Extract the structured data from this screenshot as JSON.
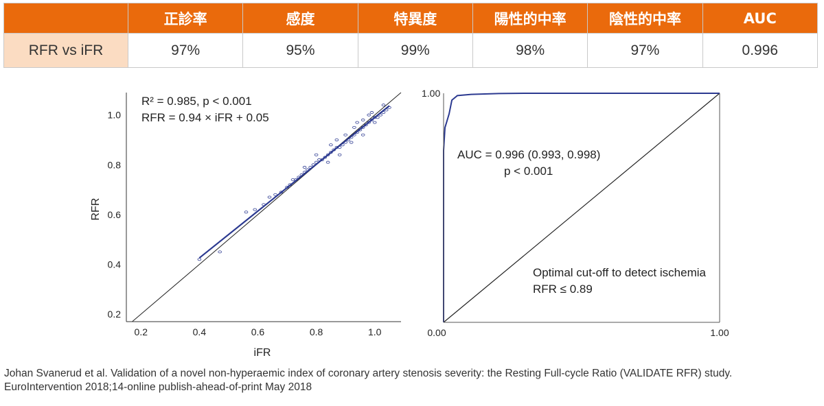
{
  "table": {
    "headers": [
      "",
      "正診率",
      "感度",
      "特異度",
      "陽性的中率",
      "陰性的中率",
      "AUC"
    ],
    "rows": [
      {
        "label": "RFR vs iFR",
        "values": [
          "97%",
          "95%",
          "99%",
          "98%",
          "97%",
          "0.996"
        ]
      }
    ]
  },
  "chart_data": [
    {
      "type": "scatter",
      "xlabel": "iFR",
      "ylabel": "RFR",
      "xlim": [
        0.15,
        1.09
      ],
      "ylim": [
        0.17,
        1.09
      ],
      "xticks": [
        0.2,
        0.4,
        0.6,
        0.8,
        1.0
      ],
      "xtick_labels": [
        "0.2",
        "0.4",
        "0.6",
        "0.8",
        "1.0"
      ],
      "yticks": [
        0.2,
        0.4,
        0.6,
        0.8,
        1.0
      ],
      "ytick_labels": [
        "0.2",
        "0.4",
        "0.6",
        "0.8",
        "1.0"
      ],
      "annotations": [
        "R² = 0.985, p < 0.001",
        "RFR = 0.94 × iFR + 0.05"
      ],
      "regression_line": {
        "x": [
          0.4,
          1.05
        ],
        "y": [
          0.426,
          1.037
        ],
        "color": "#2b3990"
      },
      "identity_line": true,
      "point_color": "#2b3990",
      "points": [
        [
          0.4,
          0.42
        ],
        [
          0.47,
          0.45
        ],
        [
          0.56,
          0.61
        ],
        [
          0.59,
          0.62
        ],
        [
          0.62,
          0.64
        ],
        [
          0.64,
          0.67
        ],
        [
          0.66,
          0.68
        ],
        [
          0.68,
          0.69
        ],
        [
          0.7,
          0.71
        ],
        [
          0.71,
          0.72
        ],
        [
          0.72,
          0.74
        ],
        [
          0.73,
          0.74
        ],
        [
          0.74,
          0.75
        ],
        [
          0.75,
          0.76
        ],
        [
          0.76,
          0.77
        ],
        [
          0.77,
          0.78
        ],
        [
          0.78,
          0.79
        ],
        [
          0.79,
          0.8
        ],
        [
          0.8,
          0.81
        ],
        [
          0.81,
          0.82
        ],
        [
          0.82,
          0.82
        ],
        [
          0.83,
          0.83
        ],
        [
          0.84,
          0.84
        ],
        [
          0.85,
          0.85
        ],
        [
          0.86,
          0.86
        ],
        [
          0.87,
          0.87
        ],
        [
          0.88,
          0.87
        ],
        [
          0.89,
          0.88
        ],
        [
          0.9,
          0.89
        ],
        [
          0.91,
          0.9
        ],
        [
          0.92,
          0.91
        ],
        [
          0.93,
          0.92
        ],
        [
          0.94,
          0.93
        ],
        [
          0.95,
          0.94
        ],
        [
          0.96,
          0.95
        ],
        [
          0.97,
          0.96
        ],
        [
          0.98,
          0.97
        ],
        [
          0.99,
          0.98
        ],
        [
          1.0,
          0.99
        ],
        [
          1.01,
          0.99
        ],
        [
          1.02,
          1.0
        ],
        [
          1.03,
          1.01
        ],
        [
          1.04,
          1.02
        ],
        [
          1.05,
          1.03
        ],
        [
          0.85,
          0.88
        ],
        [
          0.87,
          0.9
        ],
        [
          0.9,
          0.92
        ],
        [
          0.93,
          0.95
        ],
        [
          0.96,
          0.98
        ],
        [
          0.99,
          1.01
        ],
        [
          0.84,
          0.81
        ],
        [
          0.88,
          0.84
        ],
        [
          0.92,
          0.89
        ],
        [
          0.96,
          0.92
        ],
        [
          1.0,
          0.97
        ],
        [
          1.03,
          1.04
        ],
        [
          0.8,
          0.84
        ],
        [
          0.76,
          0.79
        ],
        [
          0.94,
          0.97
        ],
        [
          0.98,
          1.0
        ]
      ]
    },
    {
      "type": "line",
      "xlim": [
        0,
        1
      ],
      "ylim": [
        0,
        1
      ],
      "xtick_labels": [
        "0.00",
        "1.00"
      ],
      "ytick_labels": [
        "1.00"
      ],
      "annotations": [
        "AUC = 0.996 (0.993, 0.998)",
        "p < 0.001",
        "Optimal cut-off to detect ischemia",
        "RFR ≤ 0.89"
      ],
      "series": [
        {
          "x": [
            0.0,
            0.0,
            0.005,
            0.01,
            0.015,
            0.02,
            0.03,
            0.05,
            0.1,
            0.2,
            0.3,
            0.5,
            1.0
          ],
          "y": [
            0.0,
            0.75,
            0.85,
            0.87,
            0.89,
            0.91,
            0.97,
            0.99,
            0.995,
            0.999,
            1.0,
            1.0,
            1.0
          ],
          "color": "#2b3990"
        }
      ],
      "diagonal": true
    }
  ],
  "citation": [
    "Johan Svanerud et al.  Validation of a novel non-hyperaemic index of coronary artery stenosis severity: the Resting Full-cycle Ratio (VALIDATE RFR) study.",
    "EuroIntervention 2018;14-online publish-ahead-of-print May 2018"
  ]
}
